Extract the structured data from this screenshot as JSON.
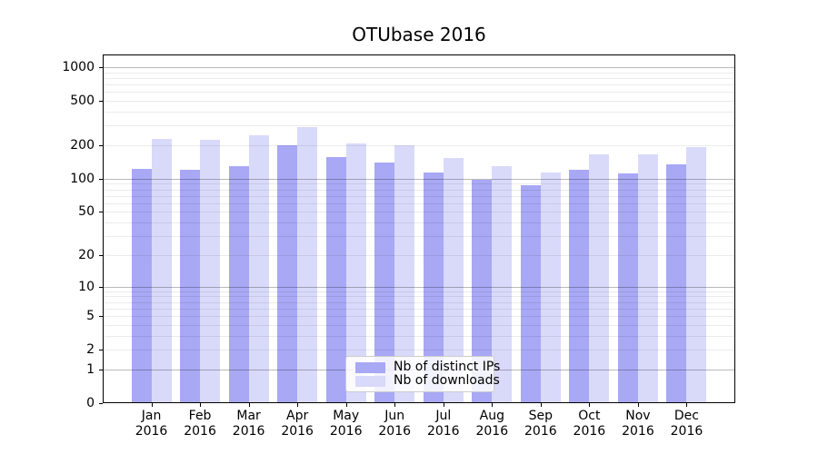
{
  "title": "OTUbase 2016",
  "chart_data": {
    "type": "bar",
    "title": "OTUbase 2016",
    "categories": [
      "Jan 2016",
      "Feb 2016",
      "Mar 2016",
      "Apr 2016",
      "May 2016",
      "Jun 2016",
      "Jul 2016",
      "Aug 2016",
      "Sep 2016",
      "Oct 2016",
      "Nov 2016",
      "Dec 2016"
    ],
    "x_tick_lines": [
      [
        "Jan",
        "2016"
      ],
      [
        "Feb",
        "2016"
      ],
      [
        "Mar",
        "2016"
      ],
      [
        "Apr",
        "2016"
      ],
      [
        "May",
        "2016"
      ],
      [
        "Jun",
        "2016"
      ],
      [
        "Jul",
        "2016"
      ],
      [
        "Aug",
        "2016"
      ],
      [
        "Sep",
        "2016"
      ],
      [
        "Oct",
        "2016"
      ],
      [
        "Nov",
        "2016"
      ],
      [
        "Dec",
        "2016"
      ]
    ],
    "series": [
      {
        "name": "Nb of distinct IPs",
        "color": "#a8a8f5",
        "values": [
          122,
          120,
          131,
          201,
          157,
          139,
          113,
          97,
          87,
          120,
          112,
          135
        ]
      },
      {
        "name": "Nb of downloads",
        "color": "#d9d9fa",
        "values": [
          228,
          223,
          246,
          290,
          207,
          201,
          153,
          129,
          113,
          165,
          166,
          192
        ]
      }
    ],
    "yscale": "symlog-log1p",
    "yticks": [
      0,
      1,
      2,
      5,
      10,
      20,
      50,
      100,
      200,
      500,
      1000
    ],
    "ytick_labels": [
      "0",
      "1",
      "2",
      "5",
      "10",
      "20",
      "50",
      "100",
      "200",
      "500",
      "1000"
    ],
    "ylim": [
      0,
      1220
    ],
    "grid": true,
    "grid_major_at": [
      1,
      10,
      100,
      1000
    ],
    "legend_position": "lower center"
  },
  "legend": {
    "items": [
      {
        "label": "Nb of distinct IPs"
      },
      {
        "label": "Nb of downloads"
      }
    ]
  },
  "colors": {
    "series_dark": "#a8a8f5",
    "series_light": "#d9d9fa",
    "spine": "#000000",
    "background": "#ffffff"
  }
}
